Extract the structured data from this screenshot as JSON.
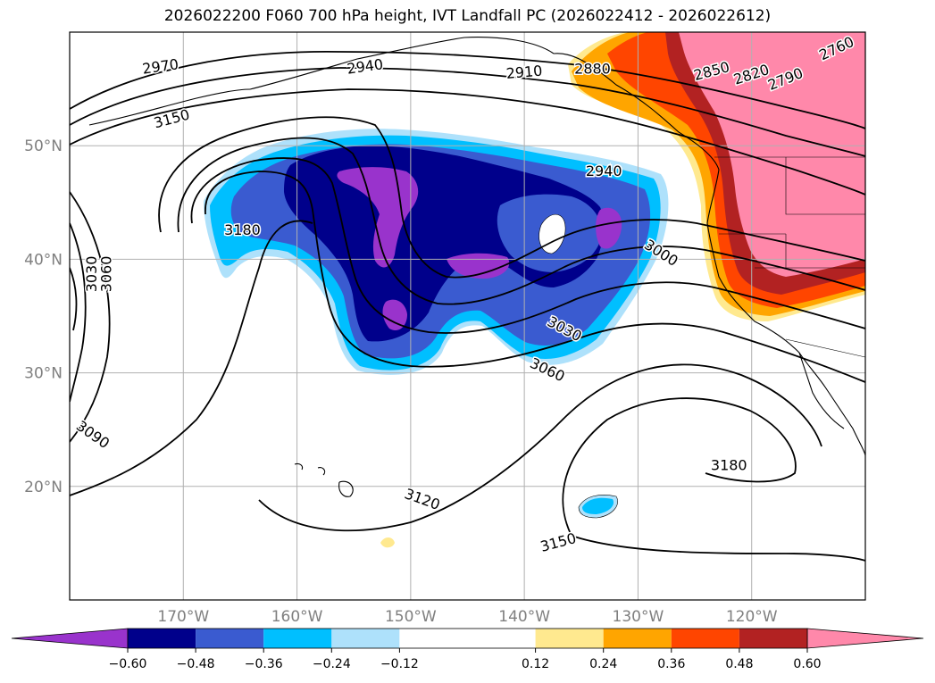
{
  "title": "2026022200 F060 700 hPa height, IVT Landfall PC (2026022412 - 2026022612)",
  "map": {
    "lon_range": [
      -180,
      -110
    ],
    "lat_range": [
      10,
      60
    ],
    "lon_ticks": [
      {
        "value": -170,
        "label": "170°W"
      },
      {
        "value": -160,
        "label": "160°W"
      },
      {
        "value": -150,
        "label": "150°W"
      },
      {
        "value": -140,
        "label": "140°W"
      },
      {
        "value": -130,
        "label": "130°W"
      },
      {
        "value": -120,
        "label": "120°W"
      }
    ],
    "lat_ticks": [
      {
        "value": 20,
        "label": "20°N"
      },
      {
        "value": 30,
        "label": "30°N"
      },
      {
        "value": 40,
        "label": "40°N"
      },
      {
        "value": 50,
        "label": "50°N"
      }
    ],
    "gridlines": true,
    "contour_labels": [
      {
        "text": "2970",
        "lon": -172.0,
        "lat": 56.9,
        "angle": 8
      },
      {
        "text": "2940",
        "lon": -154.0,
        "lat": 56.9,
        "angle": 8
      },
      {
        "text": "2910",
        "lon": -140.0,
        "lat": 56.4,
        "angle": 5
      },
      {
        "text": "2880",
        "lon": -134.0,
        "lat": 56.7,
        "angle": 0
      },
      {
        "text": "2850",
        "lon": -123.5,
        "lat": 56.5,
        "angle": 15
      },
      {
        "text": "2820",
        "lon": -120.0,
        "lat": 56.2,
        "angle": 18
      },
      {
        "text": "2790",
        "lon": -117.0,
        "lat": 55.8,
        "angle": 22
      },
      {
        "text": "2760",
        "lon": -112.5,
        "lat": 58.5,
        "angle": 25
      },
      {
        "text": "3150",
        "lon": -171.0,
        "lat": 52.3,
        "angle": 15
      },
      {
        "text": "3180",
        "lon": -164.8,
        "lat": 42.5,
        "angle": 0
      },
      {
        "text": "2940",
        "lon": -133.0,
        "lat": 47.7,
        "angle": 0
      },
      {
        "text": "3000",
        "lon": -128.0,
        "lat": 40.5,
        "angle": -32
      },
      {
        "text": "3030",
        "lon": -136.5,
        "lat": 33.8,
        "angle": -28
      },
      {
        "text": "3060",
        "lon": -138.0,
        "lat": 30.2,
        "angle": -25
      },
      {
        "text": "3060",
        "lon": -176.7,
        "lat": 38.7,
        "angle": 90
      },
      {
        "text": "3030",
        "lon": -178.0,
        "lat": 38.7,
        "angle": 90
      },
      {
        "text": "3090",
        "lon": -178.0,
        "lat": 24.5,
        "angle": -35
      },
      {
        "text": "3120",
        "lon": -149.0,
        "lat": 18.8,
        "angle": -20
      },
      {
        "text": "3150",
        "lon": -137.0,
        "lat": 15.0,
        "angle": 15
      },
      {
        "text": "3180",
        "lon": -122.0,
        "lat": 21.8,
        "angle": 0
      }
    ]
  },
  "colorbar": {
    "boundaries": [
      -0.72,
      -0.6,
      -0.48,
      -0.36,
      -0.24,
      -0.12,
      0.12,
      0.24,
      0.36,
      0.48,
      0.6,
      0.72
    ],
    "tick_values": [
      -0.6,
      -0.48,
      -0.36,
      -0.24,
      -0.12,
      0.12,
      0.24,
      0.36,
      0.48,
      0.6
    ],
    "tick_labels": [
      "−0.60",
      "−0.48",
      "−0.36",
      "−0.24",
      "−0.12",
      "0.12",
      "0.24",
      "0.36",
      "0.48",
      "0.60"
    ],
    "under_color": "#9933cc",
    "over_color": "#ff88aa",
    "colors": [
      "#9933cc",
      "#00008b",
      "#3a5bd0",
      "#00bfff",
      "#aee1fb",
      "#ffffff",
      "#ffe98f",
      "#ffa500",
      "#ff4500",
      "#b22222",
      "#ff88aa"
    ]
  }
}
